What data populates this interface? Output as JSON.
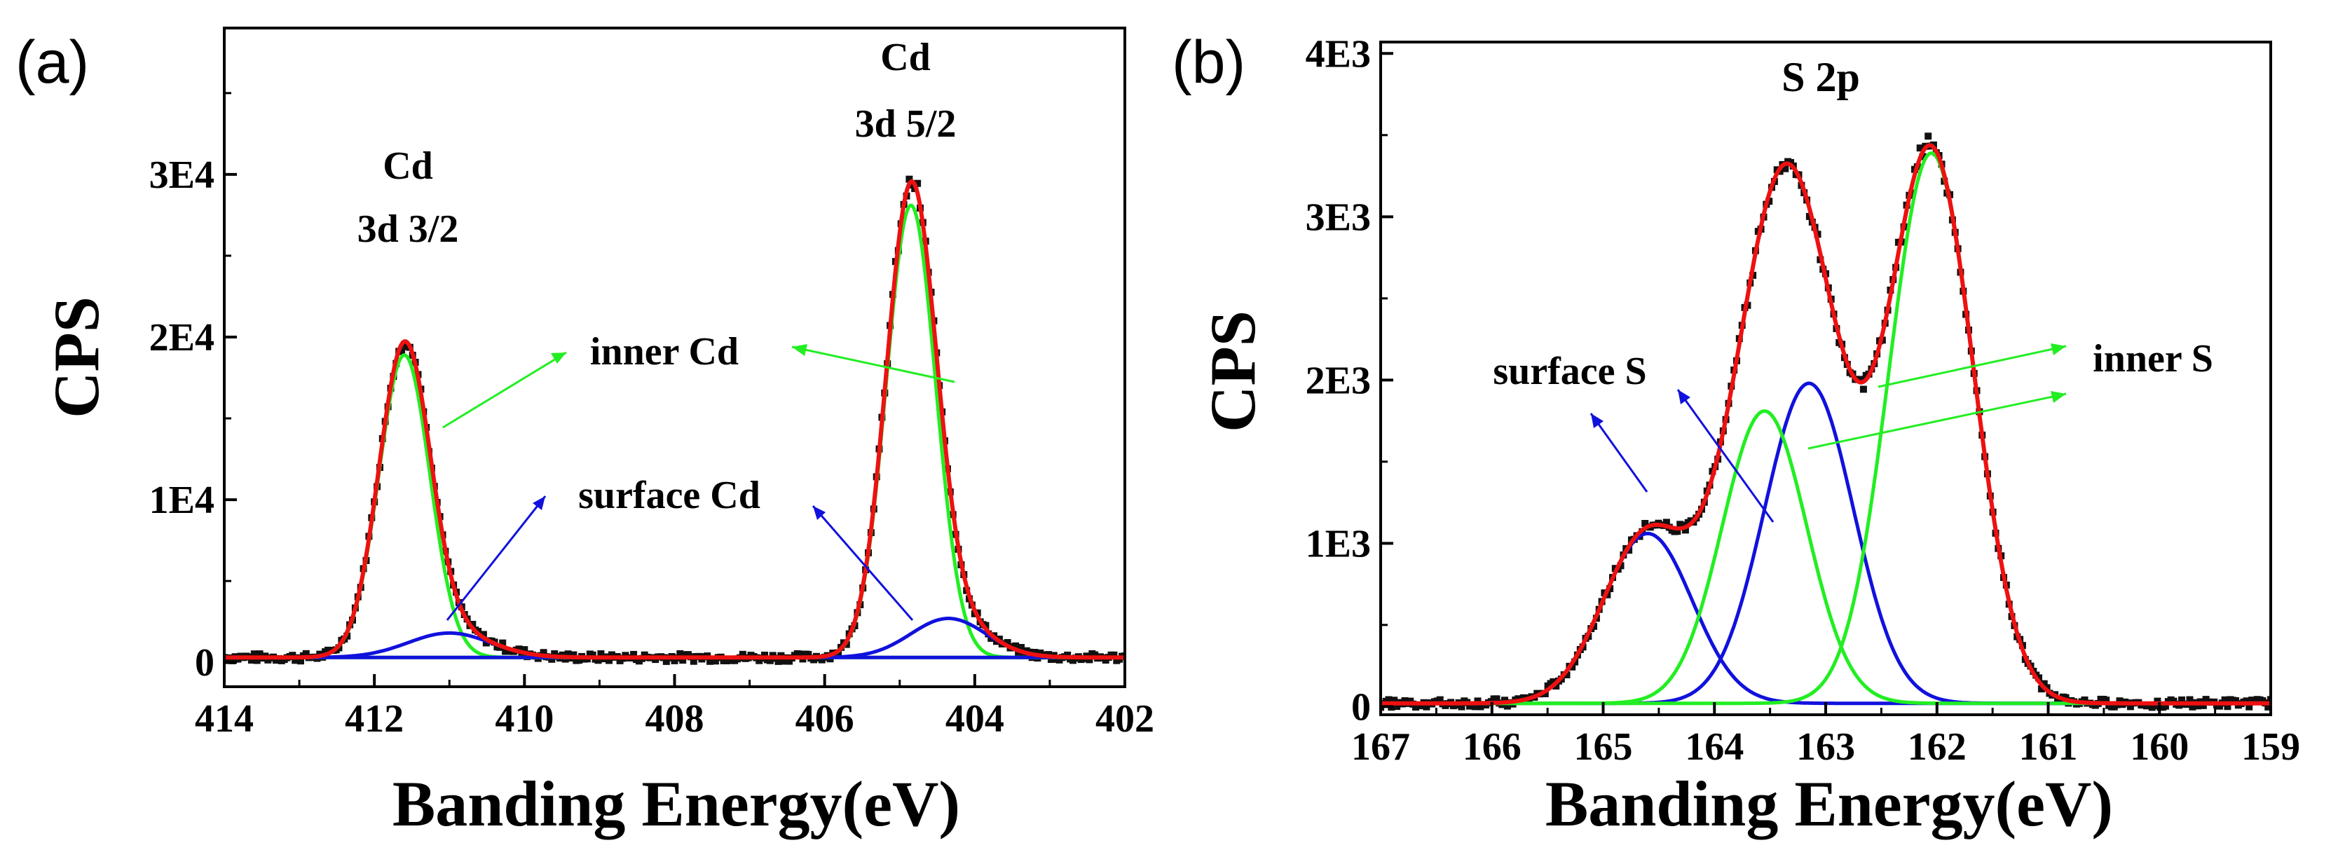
{
  "colors": {
    "data_points": "#111111",
    "envelope": "#ee1111",
    "inner": "#22ee22",
    "surface": "#1111dd",
    "axis": "#000000"
  },
  "chart_data": [
    {
      "type": "line",
      "panel_label": "(a)",
      "title": "",
      "xlabel": "Banding Energy(eV)",
      "ylabel": "CPS",
      "xlim": [
        414,
        402
      ],
      "ylim": [
        -1500,
        39000
      ],
      "x_ticks": [
        414,
        412,
        410,
        408,
        406,
        404,
        402
      ],
      "x_tick_labels": [
        "414",
        "412",
        "410",
        "408",
        "406",
        "404",
        "402"
      ],
      "y_ticks": [
        0,
        10000,
        20000,
        30000
      ],
      "y_tick_labels": [
        "0",
        "1E4",
        "2E4",
        "3E4"
      ],
      "grid": false,
      "baseline": 300,
      "components": [
        {
          "name": "inner Cd (3d 3/2)",
          "group": "inner",
          "center": 411.6,
          "amplitude": 18600,
          "sigma": 0.34
        },
        {
          "name": "inner Cd (3d 5/2)",
          "group": "inner",
          "center": 404.85,
          "amplitude": 27800,
          "sigma": 0.33
        },
        {
          "name": "surface Cd (3d 3/2)",
          "group": "surface",
          "center": 411.0,
          "amplitude": 1500,
          "sigma": 0.55
        },
        {
          "name": "surface Cd (3d 5/2)",
          "group": "surface",
          "center": 404.35,
          "amplitude": 2400,
          "sigma": 0.5
        }
      ],
      "series_names": {
        "data": "measured",
        "envelope": "fit envelope"
      },
      "annotations": [
        {
          "id": "peak-label-1-line1",
          "text": "Cd"
        },
        {
          "id": "peak-label-1-line2",
          "text": "3d 3/2"
        },
        {
          "id": "peak-label-2-line1",
          "text": "Cd"
        },
        {
          "id": "peak-label-2-line2",
          "text": "3d 5/2"
        },
        {
          "id": "inner-label",
          "text": "inner Cd"
        },
        {
          "id": "surface-label",
          "text": "surface Cd"
        }
      ]
    },
    {
      "type": "line",
      "panel_label": "(b)",
      "title": "S 2p",
      "xlabel": "Banding Energy(eV)",
      "ylabel": "CPS",
      "xlim": [
        167,
        159
      ],
      "ylim": [
        -50,
        4070
      ],
      "x_ticks": [
        167,
        166,
        165,
        164,
        163,
        162,
        161,
        160,
        159
      ],
      "x_tick_labels": [
        "167",
        "166",
        "165",
        "164",
        "163",
        "162",
        "161",
        "160",
        "159"
      ],
      "y_ticks": [
        0,
        1000,
        2000,
        3000,
        4000
      ],
      "y_tick_labels": [
        "0",
        "1E3",
        "2E3",
        "3E3",
        "4E3"
      ],
      "grid": false,
      "baseline": 20,
      "components": [
        {
          "name": "surface S (1)",
          "group": "surface",
          "center": 164.6,
          "amplitude": 1040,
          "sigma": 0.4
        },
        {
          "name": "surface S (2)",
          "group": "surface",
          "center": 163.15,
          "amplitude": 1960,
          "sigma": 0.4
        },
        {
          "name": "inner S (1)",
          "group": "inner",
          "center": 163.55,
          "amplitude": 1790,
          "sigma": 0.38
        },
        {
          "name": "inner S (2)",
          "group": "inner",
          "center": 162.05,
          "amplitude": 3370,
          "sigma": 0.38
        }
      ],
      "series_names": {
        "data": "measured",
        "envelope": "fit envelope"
      },
      "annotations": [
        {
          "id": "surface-label",
          "text": "surface S"
        },
        {
          "id": "inner-label",
          "text": "inner S"
        }
      ]
    }
  ]
}
